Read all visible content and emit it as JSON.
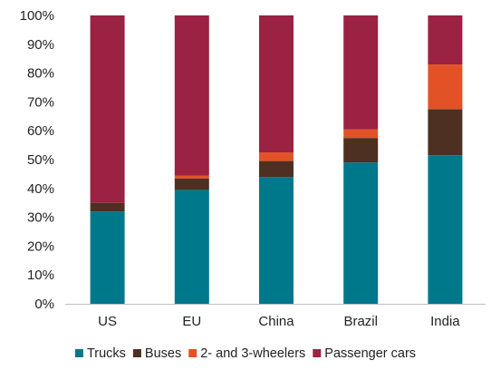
{
  "chart_data": {
    "type": "bar",
    "stacked": true,
    "percent": true,
    "categories": [
      "US",
      "EU",
      "China",
      "Brazil",
      "India"
    ],
    "series": [
      {
        "name": "Trucks",
        "color": "#00788c",
        "values": [
          32,
          39.5,
          44,
          49,
          51.5
        ]
      },
      {
        "name": "Buses",
        "color": "#4d3021",
        "values": [
          3,
          4,
          5.5,
          8.5,
          16
        ]
      },
      {
        "name": "2- and 3-wheelers",
        "color": "#e35227",
        "values": [
          0,
          1,
          3,
          3,
          15.5
        ]
      },
      {
        "name": "Passenger cars",
        "color": "#9b2243",
        "values": [
          65,
          55.5,
          47.5,
          39.5,
          17
        ]
      }
    ],
    "yticks": [
      "0%",
      "10%",
      "20%",
      "30%",
      "40%",
      "50%",
      "60%",
      "70%",
      "80%",
      "90%",
      "100%"
    ],
    "ylim": [
      0,
      100
    ],
    "grid": false,
    "legend_position": "bottom",
    "title": "",
    "xlabel": "",
    "ylabel": ""
  }
}
